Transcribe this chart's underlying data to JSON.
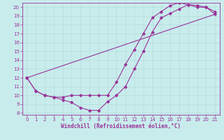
{
  "xlabel": "Windchill (Refroidissement éolien,°C)",
  "bg_color": "#c8ecec",
  "line_color": "#993399",
  "grid_color": "#b8dede",
  "xlim": [
    -0.5,
    21.5
  ],
  "ylim": [
    7.8,
    20.5
  ],
  "xticks": [
    0,
    1,
    2,
    3,
    4,
    5,
    6,
    7,
    8,
    9,
    10,
    11,
    12,
    13,
    14,
    15,
    16,
    17,
    18,
    19,
    20,
    21
  ],
  "yticks": [
    8,
    9,
    10,
    11,
    12,
    13,
    14,
    15,
    16,
    17,
    18,
    19,
    20
  ],
  "series": [
    {
      "x": [
        0,
        1,
        2,
        3,
        4,
        5,
        6,
        7,
        8,
        9,
        10,
        11,
        12,
        13,
        14,
        15,
        16,
        17,
        18,
        19,
        20,
        21
      ],
      "y": [
        12,
        10.5,
        10.0,
        9.8,
        9.5,
        9.2,
        8.6,
        8.3,
        8.3,
        9.3,
        10.0,
        11.0,
        13.0,
        15.0,
        17.2,
        18.8,
        19.3,
        19.8,
        20.3,
        20.0,
        20.0,
        19.2
      ]
    },
    {
      "x": [
        0,
        1,
        2,
        3,
        4,
        5,
        6,
        7,
        8,
        9,
        10,
        11,
        12,
        13,
        14,
        15,
        16,
        17,
        18,
        19,
        20,
        21
      ],
      "y": [
        12,
        10.5,
        10.0,
        9.8,
        9.8,
        10.0,
        10.0,
        10.0,
        10.0,
        10.0,
        11.5,
        13.5,
        15.2,
        17.0,
        18.8,
        19.5,
        20.2,
        20.5,
        20.3,
        20.2,
        20.0,
        19.5
      ]
    },
    {
      "x": [
        0,
        21
      ],
      "y": [
        12,
        19.2
      ]
    }
  ]
}
